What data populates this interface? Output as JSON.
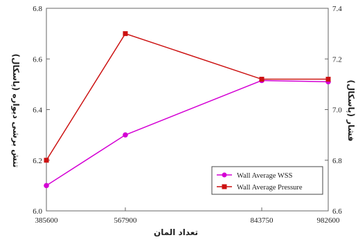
{
  "chart_data": {
    "type": "line",
    "x": [
      385600,
      567900,
      843750,
      982600
    ],
    "x_tick_labels": [
      "385600",
      "567900",
      "843750",
      "982600"
    ],
    "xlabel": "تعداد المان",
    "ylabel_left": "تنش برشی دیواره (پاسکال)",
    "ylabel_right": "فشار (پاسکال)",
    "ylim_left": [
      6.0,
      6.8
    ],
    "ylim_right": [
      6.6,
      7.4
    ],
    "y_ticks_left": [
      "6.0",
      "6.2",
      "6.4",
      "6.6",
      "6.8"
    ],
    "y_ticks_right": [
      "6.6",
      "6.8",
      "7.0",
      "7.2",
      "7.4"
    ],
    "grid": false,
    "legend_position": "lower-right",
    "series": [
      {
        "name": "Wall Average WSS",
        "axis": "left",
        "values": [
          6.1,
          6.3,
          6.515,
          6.51
        ],
        "color": "#d400d4",
        "marker": "circle"
      },
      {
        "name": "Wall Average Pressure",
        "axis": "right",
        "values": [
          6.8,
          7.3,
          7.12,
          7.12
        ],
        "color": "#cc1111",
        "marker": "square"
      }
    ]
  }
}
